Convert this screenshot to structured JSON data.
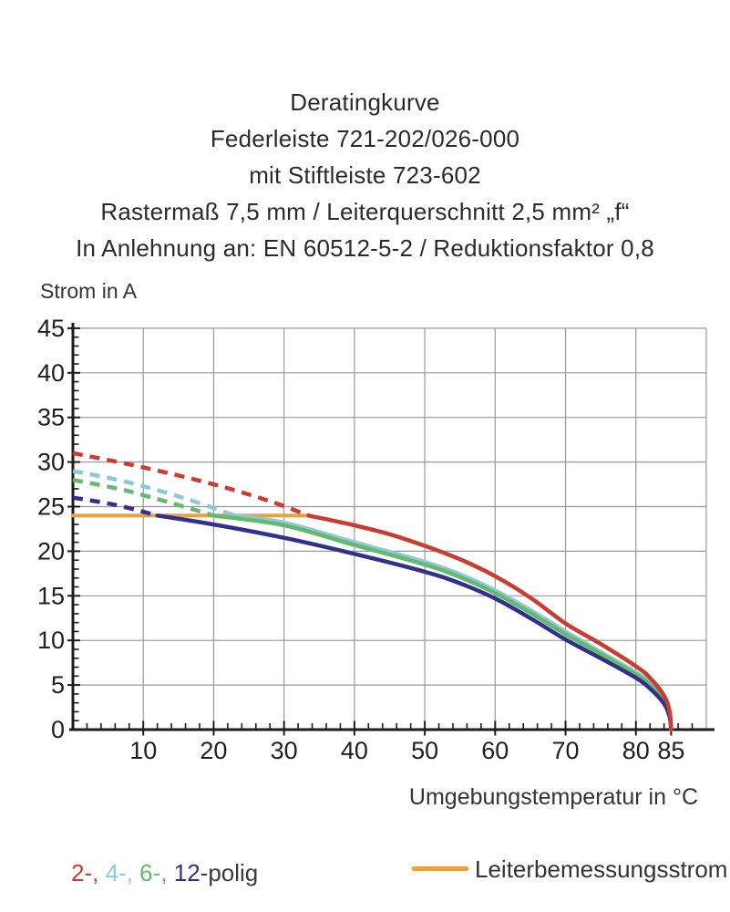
{
  "title": {
    "lines": [
      "Deratingkurve",
      "Federleiste 721-202/026-000",
      "mit Stiftleiste 723-602",
      "Rastermaß 7,5 mm / Leiterquerschnitt 2,5 mm² „f“",
      "In Anlehnung an: EN 60512-5-2 / Reduktionsfaktor 0,8"
    ]
  },
  "chart_data": {
    "type": "line",
    "title": "Deratingkurve",
    "xlabel": "Umgebungstemperatur in °C",
    "ylabel": "Strom in A",
    "xlim": [
      0,
      90
    ],
    "ylim": [
      0,
      45
    ],
    "grid": true,
    "x_major_ticks": [
      10,
      20,
      30,
      40,
      50,
      60,
      70,
      80,
      85
    ],
    "x_grid_lines": [
      10,
      20,
      30,
      40,
      50,
      60,
      70,
      80,
      90
    ],
    "y_major_ticks": [
      0,
      5,
      10,
      15,
      20,
      25,
      30,
      35,
      40,
      45
    ],
    "x_minor_step": 2,
    "y_minor_step": 1,
    "colors": {
      "grid": "#999999",
      "axis": "#1c1c1c",
      "tick_label": "#1f1f1f"
    },
    "series": [
      {
        "name": "Leiterbemessungsstrom",
        "color": "#eba23c",
        "style": "solid",
        "width": 4,
        "points": [
          [
            0,
            24
          ],
          [
            33.5,
            24
          ]
        ]
      },
      {
        "name": "2-polig-grenze",
        "color": "#c83c32",
        "style": "dashed",
        "width": 4.5,
        "points": [
          [
            0,
            31
          ],
          [
            10,
            29.4
          ],
          [
            20,
            27.5
          ],
          [
            28,
            25.6
          ],
          [
            33.5,
            24
          ]
        ]
      },
      {
        "name": "4-polig-grenze",
        "color": "#8cc8d7",
        "style": "dashed",
        "width": 4.5,
        "points": [
          [
            0,
            29
          ],
          [
            8,
            27.7
          ],
          [
            16,
            25.9
          ],
          [
            23,
            24
          ]
        ]
      },
      {
        "name": "6-polig-grenze",
        "color": "#64b96e",
        "style": "dashed",
        "width": 4.5,
        "points": [
          [
            0,
            28
          ],
          [
            7,
            26.9
          ],
          [
            14,
            25.4
          ],
          [
            20,
            24
          ]
        ]
      },
      {
        "name": "12-polig-grenze",
        "color": "#32308c",
        "style": "dashed",
        "width": 4.5,
        "points": [
          [
            0,
            26
          ],
          [
            6,
            25.2
          ],
          [
            12,
            24
          ]
        ]
      },
      {
        "name": "4-polig",
        "color": "#8cc8d7",
        "style": "solid",
        "width": 4.5,
        "points": [
          [
            23,
            24
          ],
          [
            30,
            23.2
          ],
          [
            40,
            21.0
          ],
          [
            50,
            18.8
          ],
          [
            55,
            17.4
          ],
          [
            60,
            15.6
          ],
          [
            65,
            13.4
          ],
          [
            70,
            11.0
          ],
          [
            75,
            8.7
          ],
          [
            80,
            6.4
          ],
          [
            82,
            5.2
          ],
          [
            84,
            3.4
          ],
          [
            84.8,
            1.8
          ],
          [
            85,
            0
          ]
        ]
      },
      {
        "name": "6-polig",
        "color": "#64b96e",
        "style": "solid",
        "width": 4.5,
        "points": [
          [
            20,
            24
          ],
          [
            30,
            22.9
          ],
          [
            40,
            20.7
          ],
          [
            50,
            18.5
          ],
          [
            55,
            17.1
          ],
          [
            60,
            15.3
          ],
          [
            65,
            13.1
          ],
          [
            70,
            10.7
          ],
          [
            75,
            8.5
          ],
          [
            80,
            6.2
          ],
          [
            82,
            5.0
          ],
          [
            84,
            3.2
          ],
          [
            84.8,
            1.6
          ],
          [
            85,
            0
          ]
        ]
      },
      {
        "name": "12-polig",
        "color": "#32308c",
        "style": "solid",
        "width": 4.5,
        "points": [
          [
            12,
            24
          ],
          [
            20,
            23.0
          ],
          [
            30,
            21.5
          ],
          [
            40,
            19.7
          ],
          [
            50,
            17.7
          ],
          [
            55,
            16.4
          ],
          [
            60,
            14.7
          ],
          [
            65,
            12.5
          ],
          [
            70,
            10.1
          ],
          [
            75,
            8.0
          ],
          [
            80,
            5.8
          ],
          [
            82,
            4.6
          ],
          [
            84,
            2.9
          ],
          [
            84.8,
            1.4
          ],
          [
            85,
            0
          ]
        ]
      },
      {
        "name": "2-polig",
        "color": "#c83c32",
        "style": "solid",
        "width": 4.5,
        "points": [
          [
            33.5,
            24
          ],
          [
            40,
            22.9
          ],
          [
            45,
            21.9
          ],
          [
            50,
            20.6
          ],
          [
            55,
            19.1
          ],
          [
            60,
            17.2
          ],
          [
            65,
            14.8
          ],
          [
            70,
            11.9
          ],
          [
            75,
            9.6
          ],
          [
            80,
            7.1
          ],
          [
            82,
            5.8
          ],
          [
            84,
            3.8
          ],
          [
            84.8,
            2.0
          ],
          [
            85,
            0
          ]
        ]
      }
    ]
  },
  "legend": {
    "poles": {
      "items": [
        {
          "label": "2-,",
          "color": "#c83c32"
        },
        {
          "label": "4-,",
          "color": "#8cc8d7"
        },
        {
          "label": "6-,",
          "color": "#64b96e"
        },
        {
          "label": "12-",
          "color": "#32308c"
        }
      ],
      "suffix": "polig",
      "suffix_color": "#3a3a3a"
    },
    "leiter": {
      "label": "Leiterbemessungsstrom",
      "color": "#eba23c"
    }
  }
}
